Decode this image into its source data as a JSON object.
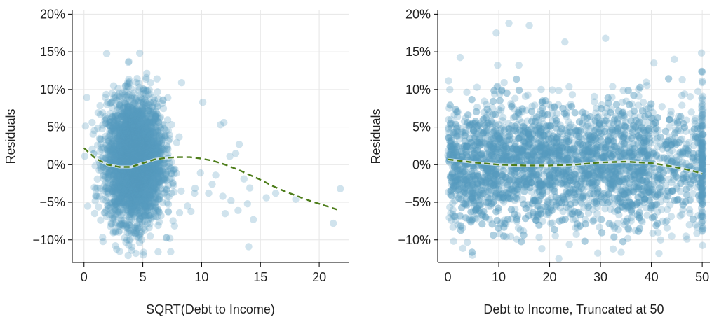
{
  "chart_data": [
    {
      "type": "scatter",
      "xlabel": "SQRT(Debt to Income)",
      "ylabel": "Residuals",
      "xlim": [
        -1,
        22.5
      ],
      "ylim": [
        -0.13,
        0.205
      ],
      "xticks": [
        0,
        5,
        10,
        15,
        20
      ],
      "xtick_labels": [
        "0",
        "5",
        "10",
        "15",
        "20"
      ],
      "yticks": [
        -0.1,
        -0.05,
        0.0,
        0.05,
        0.1,
        0.15,
        0.2
      ],
      "ytick_labels": [
        "−10%",
        "−5%",
        "0%",
        "5%",
        "10%",
        "15%",
        "20%"
      ],
      "grid": true,
      "point_color": "#569bbd",
      "trend_color": "#4d7d1a",
      "points": [
        [
          10.1,
          0.083
        ],
        [
          11.6,
          0.053
        ],
        [
          11.9,
          0.056
        ],
        [
          12.4,
          0.011
        ],
        [
          12.9,
          0.015
        ],
        [
          13.2,
          0.027
        ],
        [
          10.6,
          -0.038
        ],
        [
          11.2,
          -0.014
        ],
        [
          11.8,
          -0.042
        ],
        [
          12.5,
          -0.048
        ],
        [
          13.1,
          -0.061
        ],
        [
          13.6,
          -0.019
        ],
        [
          14.1,
          -0.031
        ],
        [
          14.4,
          -0.073
        ],
        [
          14.0,
          -0.109
        ],
        [
          15.5,
          -0.044
        ],
        [
          16.3,
          -0.038
        ],
        [
          18.0,
          -0.046
        ],
        [
          21.2,
          -0.078
        ],
        [
          21.8,
          -0.032
        ],
        [
          9.4,
          -0.038
        ],
        [
          9.9,
          -0.011
        ],
        [
          10.9,
          -0.026
        ],
        [
          12.0,
          -0.065
        ],
        [
          13.9,
          -0.052
        ],
        [
          8.3,
          0.109
        ],
        [
          7.3,
          -0.098
        ],
        [
          6.3,
          -0.116
        ],
        [
          9.1,
          -0.062
        ],
        [
          8.8,
          -0.055
        ]
      ],
      "cluster": {
        "x_center": 4.3,
        "x_spread": 1.2,
        "y_center": 0.005,
        "y_spread": 0.04,
        "count": 3500
      },
      "trend_line": [
        [
          0.0,
          0.022
        ],
        [
          1.0,
          0.008
        ],
        [
          2.0,
          0.0
        ],
        [
          3.0,
          -0.003
        ],
        [
          4.0,
          -0.003
        ],
        [
          5.0,
          0.002
        ],
        [
          6.0,
          0.007
        ],
        [
          7.0,
          0.009
        ],
        [
          8.0,
          0.01
        ],
        [
          9.0,
          0.01
        ],
        [
          10.0,
          0.008
        ],
        [
          11.0,
          0.005
        ],
        [
          12.0,
          0.0
        ],
        [
          13.0,
          -0.006
        ],
        [
          14.0,
          -0.013
        ],
        [
          15.0,
          -0.02
        ],
        [
          16.0,
          -0.028
        ],
        [
          17.0,
          -0.035
        ],
        [
          18.0,
          -0.041
        ],
        [
          19.0,
          -0.047
        ],
        [
          20.0,
          -0.052
        ],
        [
          21.0,
          -0.057
        ],
        [
          21.8,
          -0.061
        ]
      ]
    },
    {
      "type": "scatter",
      "xlabel": "Debt to Income, Truncated at 50",
      "ylabel": "Residuals",
      "xlim": [
        -2,
        51.5
      ],
      "ylim": [
        -0.13,
        0.205
      ],
      "xticks": [
        0,
        10,
        20,
        30,
        40,
        50
      ],
      "xtick_labels": [
        "0",
        "10",
        "20",
        "30",
        "40",
        "50"
      ],
      "yticks": [
        -0.1,
        -0.05,
        0.0,
        0.05,
        0.1,
        0.15,
        0.2
      ],
      "ytick_labels": [
        "−10%",
        "−5%",
        "0%",
        "5%",
        "10%",
        "15%",
        "20%"
      ],
      "grid": true,
      "point_color": "#569bbd",
      "trend_color": "#4d7d1a",
      "points": [
        [
          12.0,
          0.188
        ],
        [
          16.0,
          0.185
        ],
        [
          9.5,
          0.175
        ],
        [
          23.0,
          0.163
        ],
        [
          31.0,
          0.168
        ],
        [
          41.5,
          -0.118
        ],
        [
          44.0,
          -0.095
        ],
        [
          47.0,
          -0.099
        ],
        [
          46.5,
          0.094
        ],
        [
          45.2,
          0.045
        ],
        [
          49.0,
          0.03
        ],
        [
          43.0,
          0.03
        ],
        [
          47.5,
          -0.06
        ],
        [
          48.7,
          -0.08
        ],
        [
          42.0,
          -0.06
        ],
        [
          44.5,
          0.14
        ],
        [
          40.5,
          0.135
        ],
        [
          37.5,
          0.1
        ]
      ],
      "cluster": {
        "x_center": 20,
        "x_spread": 20,
        "y_center": 0.0,
        "y_spread": 0.04,
        "count": 3500
      },
      "edge_column": {
        "x": 50,
        "y_center": 0.0,
        "y_spread": 0.05,
        "count": 160
      },
      "trend_line": [
        [
          0.0,
          0.007
        ],
        [
          5.0,
          0.003
        ],
        [
          10.0,
          0.0
        ],
        [
          15.0,
          -0.001
        ],
        [
          20.0,
          -0.001
        ],
        [
          25.0,
          0.0
        ],
        [
          30.0,
          0.003
        ],
        [
          35.0,
          0.004
        ],
        [
          40.0,
          0.002
        ],
        [
          43.0,
          -0.001
        ],
        [
          46.0,
          -0.005
        ],
        [
          48.0,
          -0.008
        ],
        [
          50.0,
          -0.012
        ]
      ]
    }
  ]
}
